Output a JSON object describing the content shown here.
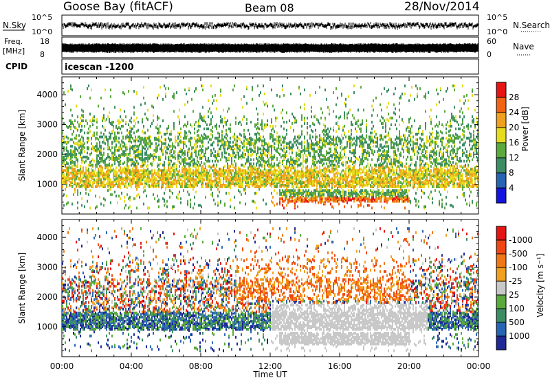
{
  "header": {
    "radar": "Goose Bay (fitACF)",
    "beam": "Beam 08",
    "date": "28/Nov/2014"
  },
  "panels": {
    "nsky": {
      "label": "N.Sky",
      "ticks": [
        "10^5",
        "10^0"
      ],
      "right_label": "N.Search",
      "right_ticks": [
        "10^5",
        "10^0"
      ]
    },
    "freq": {
      "label_line1": "Freq.",
      "label_line2": "[MHz]",
      "ticks": [
        "18",
        "8"
      ],
      "right_label": "Nave",
      "right_ticks": [
        "60",
        "0"
      ]
    },
    "cpid": {
      "label": "CPID",
      "value": "icescan -1200"
    }
  },
  "chart_data": [
    {
      "type": "heatmap",
      "name": "power",
      "xlabel": "",
      "ylabel": "Slant Range [km]",
      "xlim": [
        0,
        24
      ],
      "ylim": [
        0,
        4600
      ],
      "yticks": [
        "4000",
        "3000",
        "2000",
        "1000"
      ],
      "colorbar": {
        "label": "Power [dB]",
        "levels": [
          "4",
          "8",
          "12",
          "16",
          "20",
          "24",
          "28"
        ],
        "colors": [
          "#1414e0",
          "#2864b4",
          "#3c8c64",
          "#5aaa3c",
          "#e6dc1e",
          "#f0a01e",
          "#f06414",
          "#e61414"
        ]
      }
    },
    {
      "type": "heatmap",
      "name": "velocity",
      "xlabel": "Time UT",
      "ylabel": "Slant Range [km]",
      "xlim": [
        0,
        24
      ],
      "ylim": [
        0,
        4600
      ],
      "yticks": [
        "4000",
        "3000",
        "2000",
        "1000"
      ],
      "xticks": [
        "00:00",
        "04:00",
        "08:00",
        "12:00",
        "16:00",
        "20:00",
        "00:00"
      ],
      "colorbar": {
        "label": "Velocity [m s⁻¹]",
        "levels": [
          "1000",
          "500",
          "100",
          "25",
          "-25",
          "-100",
          "-500",
          "-1000"
        ],
        "colors": [
          "#1e2896",
          "#2864b4",
          "#3c8c64",
          "#5aaa3c",
          "#c8c8c8",
          "#f0a01e",
          "#f07814",
          "#f04614",
          "#e61414"
        ]
      }
    }
  ]
}
